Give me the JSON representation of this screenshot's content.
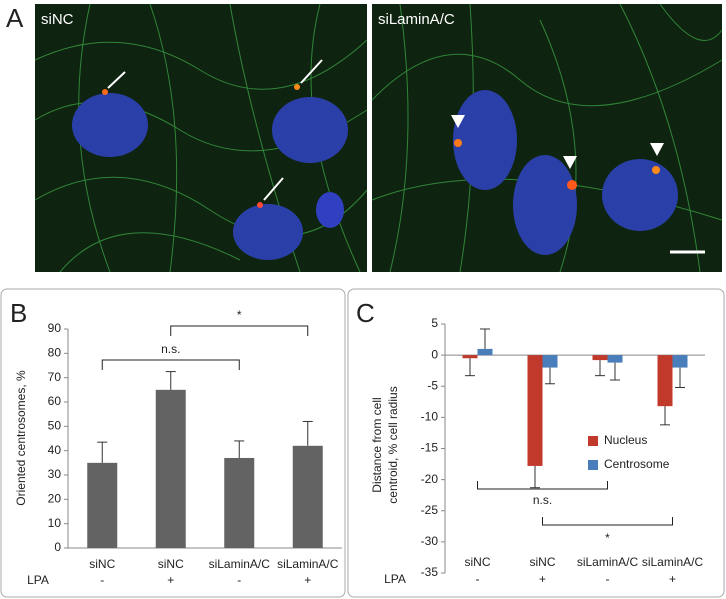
{
  "panels": [
    "A",
    "B",
    "C"
  ],
  "images": [
    "siNC",
    "siLaminA/C"
  ],
  "chart_data": [
    {
      "type": "bar",
      "ylabel": "Oriented centrosomes, %",
      "categories": [
        "siNC",
        "siNC",
        "siLaminA/C",
        "siLaminA/C"
      ],
      "row2_label": "LPA",
      "row2": [
        "-",
        "+",
        "-",
        "+"
      ],
      "values": [
        35,
        65,
        37,
        42
      ],
      "errors": [
        8.5,
        7.5,
        7,
        10
      ],
      "color": "#636363",
      "ylim": [
        0,
        90
      ],
      "yticks": [
        0,
        10,
        20,
        30,
        40,
        50,
        60,
        70,
        80,
        90
      ],
      "annotations": [
        "n.s.",
        "*"
      ]
    },
    {
      "type": "groupbar",
      "ylabel": [
        "Distance  from cell",
        "centroid, % cell radius"
      ],
      "categories": [
        "siNC",
        "siNC",
        "siLaminA/C",
        "siLaminA/C"
      ],
      "row2_label": "LPA",
      "row2": [
        "-",
        "+",
        "-",
        "+"
      ],
      "series": [
        {
          "name": "Nucleus",
          "color": "#c0392b",
          "values": [
            -0.5,
            -17.8,
            -0.8,
            -8.2
          ],
          "errors": [
            2.8,
            3.5,
            2.5,
            3
          ]
        },
        {
          "name": "Centrosome",
          "color": "#4a7ebb",
          "values": [
            1,
            -2,
            -1.2,
            -2
          ],
          "errors": [
            3.2,
            2.6,
            2.8,
            3.2
          ]
        }
      ],
      "ylim": [
        -35,
        5
      ],
      "yticks": [
        -35,
        -30,
        -25,
        -20,
        -15,
        -10,
        -5,
        0,
        5
      ],
      "legend": "right",
      "annotations": [
        "n.s.",
        "*"
      ]
    }
  ]
}
